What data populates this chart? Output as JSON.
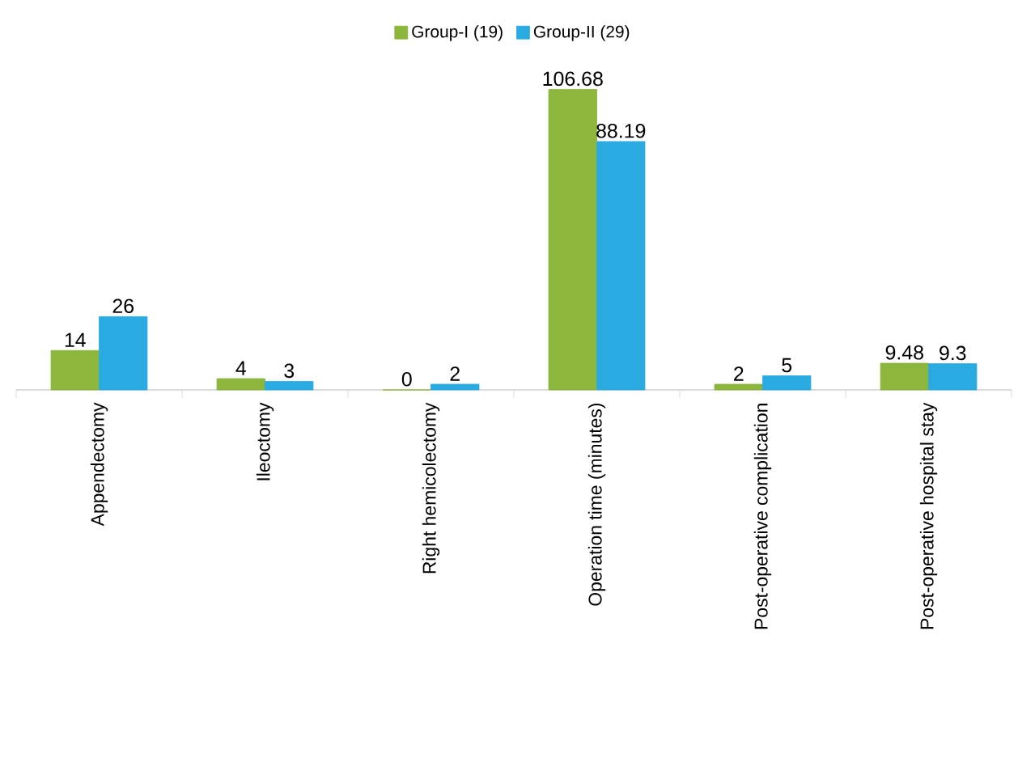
{
  "chart_data": {
    "type": "bar",
    "categories": [
      "Appendectomy",
      "Ileoctomy",
      "Right hemicolectomy",
      "Operation time (minutes)",
      "Post-operative complication",
      "Post-operative hospital stay"
    ],
    "series": [
      {
        "name": "Group-I (19)",
        "color": "#8cb63c",
        "values": [
          14,
          4,
          0,
          106.68,
          2,
          9.48
        ]
      },
      {
        "name": "Group-II (29)",
        "color": "#29abe2",
        "values": [
          26,
          3,
          2,
          88.19,
          5,
          9.3
        ]
      }
    ],
    "data_labels": true,
    "legend": "top"
  }
}
